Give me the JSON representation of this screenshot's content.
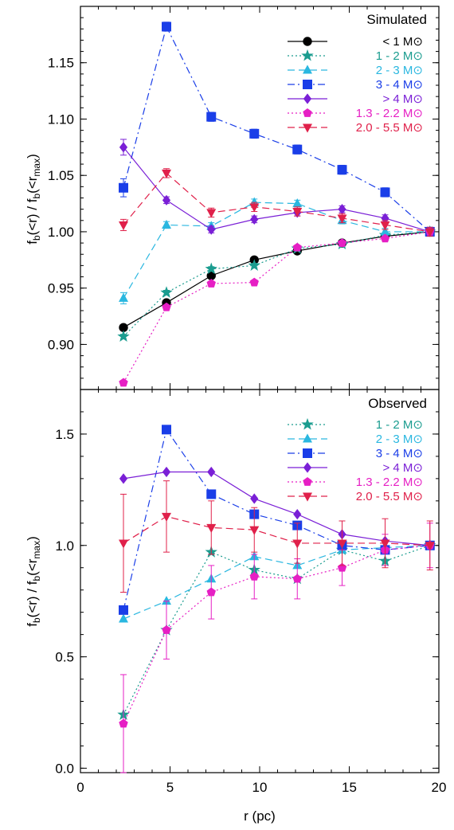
{
  "chart_data": [
    {
      "type": "line",
      "title": "Simulated",
      "ylabel": "f_b(<r) / f_b(<r_max)",
      "xlabel": "",
      "xlim": [
        0,
        20
      ],
      "ylim": [
        0.86,
        1.2
      ],
      "xticks": [
        0,
        5,
        10,
        15,
        20
      ],
      "yticks": [
        0.9,
        0.95,
        1.0,
        1.05,
        1.1,
        1.15
      ],
      "ytick_labels": [
        "0.90",
        "0.95",
        "1.00",
        "1.05",
        "1.10",
        "1.15"
      ],
      "x": [
        2.4,
        4.8,
        7.3,
        9.7,
        12.1,
        14.6,
        17.0,
        19.5
      ],
      "legend_position": "top-right",
      "series": [
        {
          "name": "< 1 M⊙",
          "color": "#000000",
          "marker": "circle",
          "dash": "",
          "values": [
            0.915,
            0.937,
            0.961,
            0.975,
            0.983,
            0.99,
            0.996,
            1.0
          ],
          "errors": [
            0.002,
            0.002,
            0.002,
            0.002,
            0.002,
            0.002,
            0.002,
            0.002
          ]
        },
        {
          "name": "1 - 2 M⊙",
          "color": "#1a9c8f",
          "marker": "star",
          "dash": "2,3",
          "values": [
            0.907,
            0.946,
            0.967,
            0.97,
            0.985,
            0.989,
            0.997,
            1.0
          ],
          "errors": [
            0.002,
            0.002,
            0.002,
            0.002,
            0.002,
            0.002,
            0.002,
            0.002
          ]
        },
        {
          "name": "2 - 3 M⊙",
          "color": "#2ab7e0",
          "marker": "triangle",
          "dash": "9,5",
          "values": [
            0.941,
            1.006,
            1.005,
            1.026,
            1.025,
            1.01,
            1.0,
            1.0
          ],
          "errors": [
            0.005,
            0.003,
            0.003,
            0.003,
            0.003,
            0.003,
            0.003,
            0.003
          ]
        },
        {
          "name": "3 - 4 M⊙",
          "color": "#1a3ee8",
          "marker": "square",
          "dash": "9,4,2,4",
          "values": [
            1.039,
            1.182,
            1.102,
            1.087,
            1.073,
            1.055,
            1.035,
            1.0
          ],
          "errors": [
            0.008,
            0.004,
            0.004,
            0.004,
            0.004,
            0.004,
            0.004,
            0.004
          ]
        },
        {
          "name": "> 4 M⊙",
          "color": "#7a1fd6",
          "marker": "diamond",
          "dash": "",
          "values": [
            1.075,
            1.028,
            1.002,
            1.011,
            1.017,
            1.02,
            1.012,
            1.0
          ],
          "errors": [
            0.007,
            0.003,
            0.003,
            0.003,
            0.003,
            0.003,
            0.003,
            0.003
          ]
        },
        {
          "name": "1.3 - 2.2 M⊙",
          "color": "#e61fc4",
          "marker": "pentagon",
          "dash": "2,3",
          "values": [
            0.866,
            0.933,
            0.954,
            0.955,
            0.986,
            0.99,
            0.994,
            1.0
          ],
          "errors": [
            0.002,
            0.002,
            0.002,
            0.002,
            0.002,
            0.002,
            0.002,
            0.002
          ]
        },
        {
          "name": "2.0 - 5.5 M⊙",
          "color": "#e0204a",
          "marker": "triangle-down",
          "dash": "9,5",
          "values": [
            1.006,
            1.052,
            1.017,
            1.022,
            1.018,
            1.012,
            1.006,
            1.0
          ],
          "errors": [
            0.005,
            0.004,
            0.004,
            0.004,
            0.004,
            0.004,
            0.004,
            0.004
          ]
        }
      ]
    },
    {
      "type": "line",
      "title": "Observed",
      "ylabel": "f_b(<r) / f_b(<r_max)",
      "xlabel": "r (pc)",
      "xlim": [
        0,
        20
      ],
      "ylim": [
        -0.02,
        1.7
      ],
      "xticks": [
        0,
        5,
        10,
        15,
        20
      ],
      "yticks": [
        0.0,
        0.5,
        1.0,
        1.5
      ],
      "ytick_labels": [
        "0.0",
        "0.5",
        "1.0",
        "1.5"
      ],
      "x": [
        2.4,
        4.8,
        7.3,
        9.7,
        12.1,
        14.6,
        17.0,
        19.5
      ],
      "legend_position": "top-right",
      "series": [
        {
          "name": "1 - 2 M⊙",
          "color": "#1a9c8f",
          "marker": "star",
          "dash": "2,3",
          "values": [
            0.24,
            0.62,
            0.97,
            0.89,
            0.85,
            0.98,
            0.93,
            1.0
          ],
          "errors": null
        },
        {
          "name": "2 - 3 M⊙",
          "color": "#2ab7e0",
          "marker": "triangle",
          "dash": "9,5",
          "values": [
            0.67,
            0.75,
            0.85,
            0.95,
            0.91,
            0.98,
            0.99,
            1.0
          ],
          "errors": null
        },
        {
          "name": "3 - 4 M⊙",
          "color": "#1a3ee8",
          "marker": "square",
          "dash": "9,4,2,4",
          "values": [
            0.71,
            1.52,
            1.23,
            1.14,
            1.09,
            1.0,
            0.98,
            1.0
          ],
          "errors": null
        },
        {
          "name": "> 4 M⊙",
          "color": "#7a1fd6",
          "marker": "diamond",
          "dash": "",
          "values": [
            1.3,
            1.33,
            1.33,
            1.21,
            1.14,
            1.05,
            1.02,
            1.0
          ],
          "errors": null
        },
        {
          "name": "1.3 - 2.2 M⊙",
          "color": "#e61fc4",
          "marker": "pentagon",
          "dash": "2,3",
          "values": [
            0.2,
            0.62,
            0.79,
            0.86,
            0.85,
            0.9,
            0.98,
            1.0
          ],
          "errors": [
            0.22,
            0.13,
            0.12,
            0.1,
            0.09,
            0.08,
            0.07,
            0.1
          ]
        },
        {
          "name": "2.0 - 5.5 M⊙",
          "color": "#e0204a",
          "marker": "triangle-down",
          "dash": "9,5",
          "values": [
            1.01,
            1.13,
            1.08,
            1.07,
            1.01,
            1.01,
            1.01,
            1.0
          ],
          "errors": [
            0.22,
            0.16,
            0.12,
            0.1,
            0.09,
            0.1,
            0.11,
            0.11
          ]
        }
      ]
    }
  ]
}
